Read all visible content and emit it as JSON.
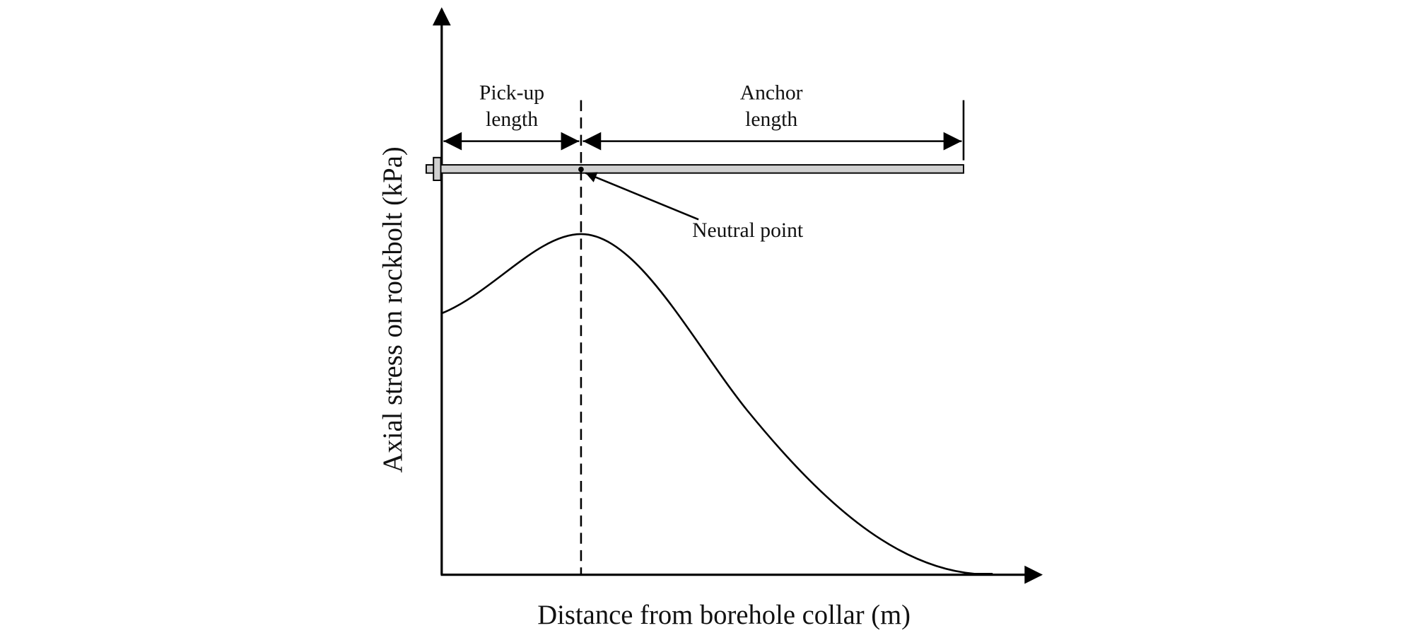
{
  "labels": {
    "pick_up": [
      "Pick-up",
      "length"
    ],
    "anchor": [
      "Anchor",
      "length"
    ],
    "neutral_point": "Neutral point",
    "y_axis": "Axial stress on rockbolt (kPa)",
    "x_axis": "Distance from borehole collar (m)"
  }
}
